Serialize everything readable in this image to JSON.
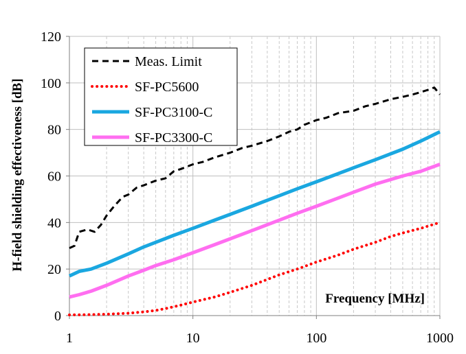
{
  "chart_data": {
    "type": "line",
    "xlabel": "Frequency [MHz]",
    "ylabel": "H-field  shielding effectiveness [dB]",
    "x_scale": "log",
    "xlim": [
      1,
      1000
    ],
    "ylim": [
      0,
      120
    ],
    "x_ticks": [
      "1",
      "10",
      "100",
      "1000"
    ],
    "y_ticks": [
      "0",
      "20",
      "40",
      "60",
      "80",
      "100",
      "120"
    ],
    "grid": true,
    "legend_position": "top-left",
    "series": [
      {
        "name": "Meas. Limit",
        "color": "#000000",
        "style": "dashed",
        "x": [
          1,
          1.1,
          1.2,
          1.4,
          1.6,
          1.8,
          2,
          2.3,
          2.7,
          3,
          3.5,
          4,
          5,
          6,
          7,
          8,
          10,
          12,
          15,
          20,
          25,
          30,
          40,
          50,
          60,
          70,
          80,
          100,
          120,
          150,
          200,
          250,
          300,
          400,
          500,
          600,
          700,
          800,
          900,
          1000
        ],
        "y": [
          29,
          30,
          36,
          37,
          36,
          39,
          43,
          47,
          51,
          52,
          55,
          56,
          58,
          59,
          62,
          63,
          65,
          66,
          68,
          70,
          72,
          73,
          75,
          77,
          79,
          80,
          82,
          84,
          85,
          87,
          88,
          90,
          91,
          93,
          94,
          95,
          96,
          97,
          98,
          95
        ]
      },
      {
        "name": "SF-PC5600",
        "color": "#ff0000",
        "style": "dotted",
        "x": [
          1,
          1.5,
          2,
          3,
          4,
          5,
          6,
          7,
          8,
          10,
          15,
          20,
          30,
          40,
          50,
          70,
          100,
          150,
          200,
          300,
          400,
          500,
          700,
          1000
        ],
        "y": [
          0.3,
          0.4,
          0.6,
          1,
          1.6,
          2.2,
          3,
          3.8,
          4.5,
          5.8,
          8,
          10,
          13,
          15.5,
          17.5,
          20,
          23,
          26,
          28.5,
          31.5,
          34,
          35.5,
          37.5,
          40
        ]
      },
      {
        "name": "SF-PC3100-C",
        "color": "#1aa7e0",
        "style": "solid",
        "x": [
          1,
          1.2,
          1.5,
          2,
          3,
          4,
          5,
          7,
          10,
          15,
          20,
          30,
          50,
          70,
          100,
          150,
          200,
          300,
          500,
          700,
          1000
        ],
        "y": [
          17,
          19,
          20,
          22.5,
          26.5,
          29.5,
          31.5,
          34.5,
          37.5,
          41,
          43.5,
          47,
          51.5,
          54.5,
          57.5,
          61,
          63.5,
          67,
          71.5,
          75,
          79
        ]
      },
      {
        "name": "SF-PC3300-C",
        "color": "#ff6ef0",
        "style": "solid",
        "x": [
          1,
          1.2,
          1.5,
          2,
          3,
          4,
          5,
          7,
          10,
          15,
          20,
          30,
          50,
          70,
          100,
          150,
          200,
          300,
          500,
          700,
          1000
        ],
        "y": [
          8,
          9,
          10.5,
          13,
          17,
          19.5,
          21.5,
          24,
          27,
          30.5,
          33,
          36.5,
          41,
          44,
          47,
          50.5,
          53,
          56.5,
          60,
          62,
          65
        ]
      }
    ]
  }
}
